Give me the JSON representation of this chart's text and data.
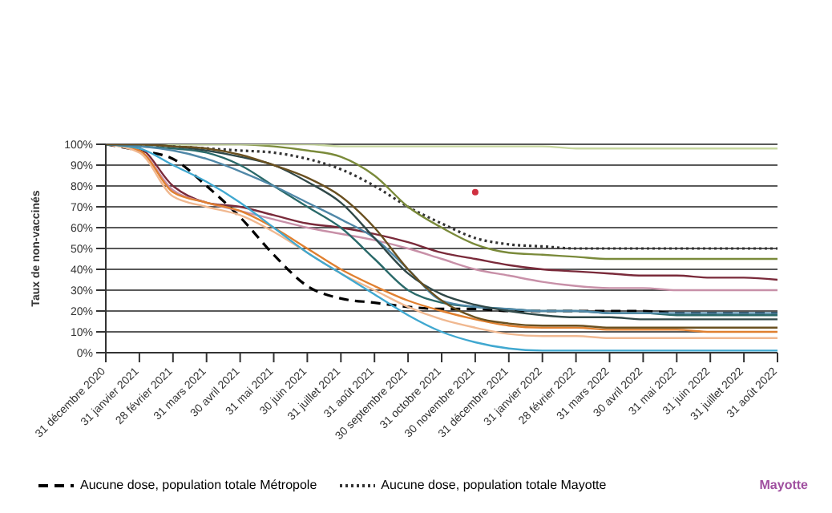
{
  "chart_data": {
    "type": "line",
    "ylabel": "Taux de non-vaccinés",
    "categories": [
      "31 décembre 2020",
      "31 janvier 2021",
      "28 février 2021",
      "31 mars 2021",
      "30 avril 2021",
      "31 mai 2021",
      "30 juin 2021",
      "31 juillet 2021",
      "31 août 2021",
      "30 septembre 2021",
      "31 octobre 2021",
      "30 novembre 2021",
      "31 décembre 2021",
      "31 janvier 2022",
      "28 février 2022",
      "31 mars 2022",
      "30 avril 2022",
      "31 mai 2022",
      "31 juin 2022",
      "31 juillet 2022",
      "31 août 2022"
    ],
    "series": [
      {
        "name": "Aucune dose, population totale Métropole",
        "color": "#000000",
        "line_style": "dashed",
        "values": [
          100,
          97,
          93,
          80,
          65,
          47,
          32,
          26,
          24,
          22,
          21,
          21,
          20,
          20,
          20,
          20,
          20,
          19,
          19,
          19,
          19
        ]
      },
      {
        "name": "Aucune dose, population totale Mayotte",
        "color": "#333333",
        "line_style": "dotted",
        "values": [
          100,
          100,
          99,
          98,
          97,
          96,
          93,
          88,
          80,
          70,
          62,
          55,
          52,
          51,
          50,
          50,
          50,
          50,
          50,
          50,
          50
        ]
      },
      {
        "color": "#7a8a3a",
        "values": [
          100,
          100,
          100,
          100,
          100,
          99,
          97,
          94,
          85,
          70,
          60,
          52,
          48,
          47,
          46,
          45,
          45,
          45,
          45,
          45,
          45
        ]
      },
      {
        "color": "#c8d8a0",
        "values": [
          100,
          100,
          100,
          100,
          100,
          100,
          100,
          99,
          99,
          99,
          99,
          99,
          99,
          99,
          98,
          98,
          98,
          98,
          98,
          98,
          98
        ]
      },
      {
        "color": "#7a2a3a",
        "values": [
          100,
          98,
          80,
          72,
          70,
          66,
          62,
          60,
          57,
          53,
          48,
          45,
          42,
          40,
          39,
          38,
          37,
          37,
          36,
          36,
          35
        ]
      },
      {
        "color": "#c890a8",
        "values": [
          100,
          97,
          78,
          72,
          68,
          64,
          60,
          57,
          54,
          50,
          45,
          40,
          37,
          34,
          32,
          31,
          31,
          30,
          30,
          30,
          30
        ]
      },
      {
        "color": "#e08030",
        "values": [
          100,
          97,
          77,
          72,
          68,
          60,
          50,
          40,
          32,
          25,
          20,
          16,
          13,
          12,
          12,
          11,
          11,
          11,
          10,
          10,
          10
        ]
      },
      {
        "color": "#f0b890",
        "values": [
          100,
          96,
          75,
          70,
          66,
          58,
          48,
          38,
          30,
          22,
          16,
          12,
          9,
          8,
          8,
          7,
          7,
          7,
          7,
          7,
          7
        ]
      },
      {
        "color": "#40a8d0",
        "values": [
          100,
          98,
          90,
          82,
          72,
          60,
          48,
          38,
          28,
          18,
          10,
          5,
          2,
          1,
          1,
          1,
          1,
          1,
          1,
          1,
          1
        ]
      },
      {
        "color": "#2a6a6a",
        "values": [
          100,
          99,
          98,
          96,
          90,
          80,
          70,
          60,
          45,
          30,
          24,
          22,
          21,
          20,
          20,
          19,
          19,
          18,
          18,
          18,
          18
        ]
      },
      {
        "color": "#5088a8",
        "values": [
          100,
          99,
          97,
          93,
          87,
          80,
          72,
          64,
          55,
          40,
          25,
          22,
          21,
          20,
          20,
          19,
          19,
          19,
          19,
          19,
          19
        ]
      },
      {
        "color": "#304848",
        "values": [
          100,
          100,
          99,
          97,
          94,
          90,
          82,
          72,
          55,
          38,
          28,
          23,
          20,
          18,
          17,
          17,
          16,
          16,
          16,
          16,
          16
        ]
      },
      {
        "color": "#6a5020",
        "values": [
          100,
          100,
          99,
          98,
          95,
          90,
          84,
          75,
          60,
          40,
          25,
          17,
          14,
          13,
          13,
          12,
          12,
          12,
          12,
          12,
          12
        ]
      },
      {
        "type": "scatter",
        "marker": "circle",
        "color": "#d03040",
        "x": [
          "30 novembre 2021"
        ],
        "values": [
          77
        ]
      }
    ],
    "ylim": [
      0,
      100
    ],
    "yticks": [
      {
        "value": 0,
        "label": "0%"
      },
      {
        "value": 10,
        "label": "10%"
      },
      {
        "value": 20,
        "label": "20%"
      },
      {
        "value": 30,
        "label": "30%"
      },
      {
        "value": 40,
        "label": "40%"
      },
      {
        "value": 50,
        "label": "50%"
      },
      {
        "value": 60,
        "label": "60%"
      },
      {
        "value": 70,
        "label": "70%"
      },
      {
        "value": 80,
        "label": "80%"
      },
      {
        "value": 90,
        "label": "90%"
      },
      {
        "value": 100,
        "label": "100%"
      }
    ],
    "grid": "y",
    "legend": "bottom",
    "annotations": [
      "Mayotte"
    ]
  }
}
